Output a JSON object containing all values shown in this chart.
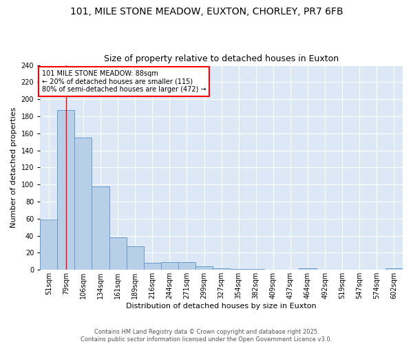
{
  "title1": "101, MILE STONE MEADOW, EUXTON, CHORLEY, PR7 6FB",
  "title2": "Size of property relative to detached houses in Euxton",
  "xlabel": "Distribution of detached houses by size in Euxton",
  "ylabel": "Number of detached properties",
  "categories": [
    "51sqm",
    "79sqm",
    "106sqm",
    "134sqm",
    "161sqm",
    "189sqm",
    "216sqm",
    "244sqm",
    "271sqm",
    "299sqm",
    "327sqm",
    "354sqm",
    "382sqm",
    "409sqm",
    "437sqm",
    "464sqm",
    "492sqm",
    "519sqm",
    "547sqm",
    "574sqm",
    "602sqm"
  ],
  "values": [
    59,
    187,
    155,
    98,
    38,
    28,
    8,
    9,
    9,
    4,
    2,
    1,
    1,
    0,
    0,
    2,
    0,
    0,
    0,
    0,
    2
  ],
  "bar_color": "#b8cfe8",
  "bar_edge_color": "#6699cc",
  "red_line_x": 1,
  "annotation_text": "101 MILE STONE MEADOW: 88sqm\n← 20% of detached houses are smaller (115)\n80% of semi-detached houses are larger (472) →",
  "annotation_box_color": "white",
  "annotation_box_edge": "red",
  "ylim": [
    0,
    240
  ],
  "yticks": [
    0,
    20,
    40,
    60,
    80,
    100,
    120,
    140,
    160,
    180,
    200,
    220,
    240
  ],
  "footnote": "Contains HM Land Registry data © Crown copyright and database right 2025.\nContains public sector information licensed under the Open Government Licence v3.0.",
  "fig_bg_color": "#ffffff",
  "axes_bg_color": "#dce8f5",
  "grid_color": "#ffffff",
  "title_fontsize": 10,
  "subtitle_fontsize": 9,
  "annot_fontsize": 7,
  "xlabel_fontsize": 8,
  "ylabel_fontsize": 8,
  "tick_fontsize": 7
}
